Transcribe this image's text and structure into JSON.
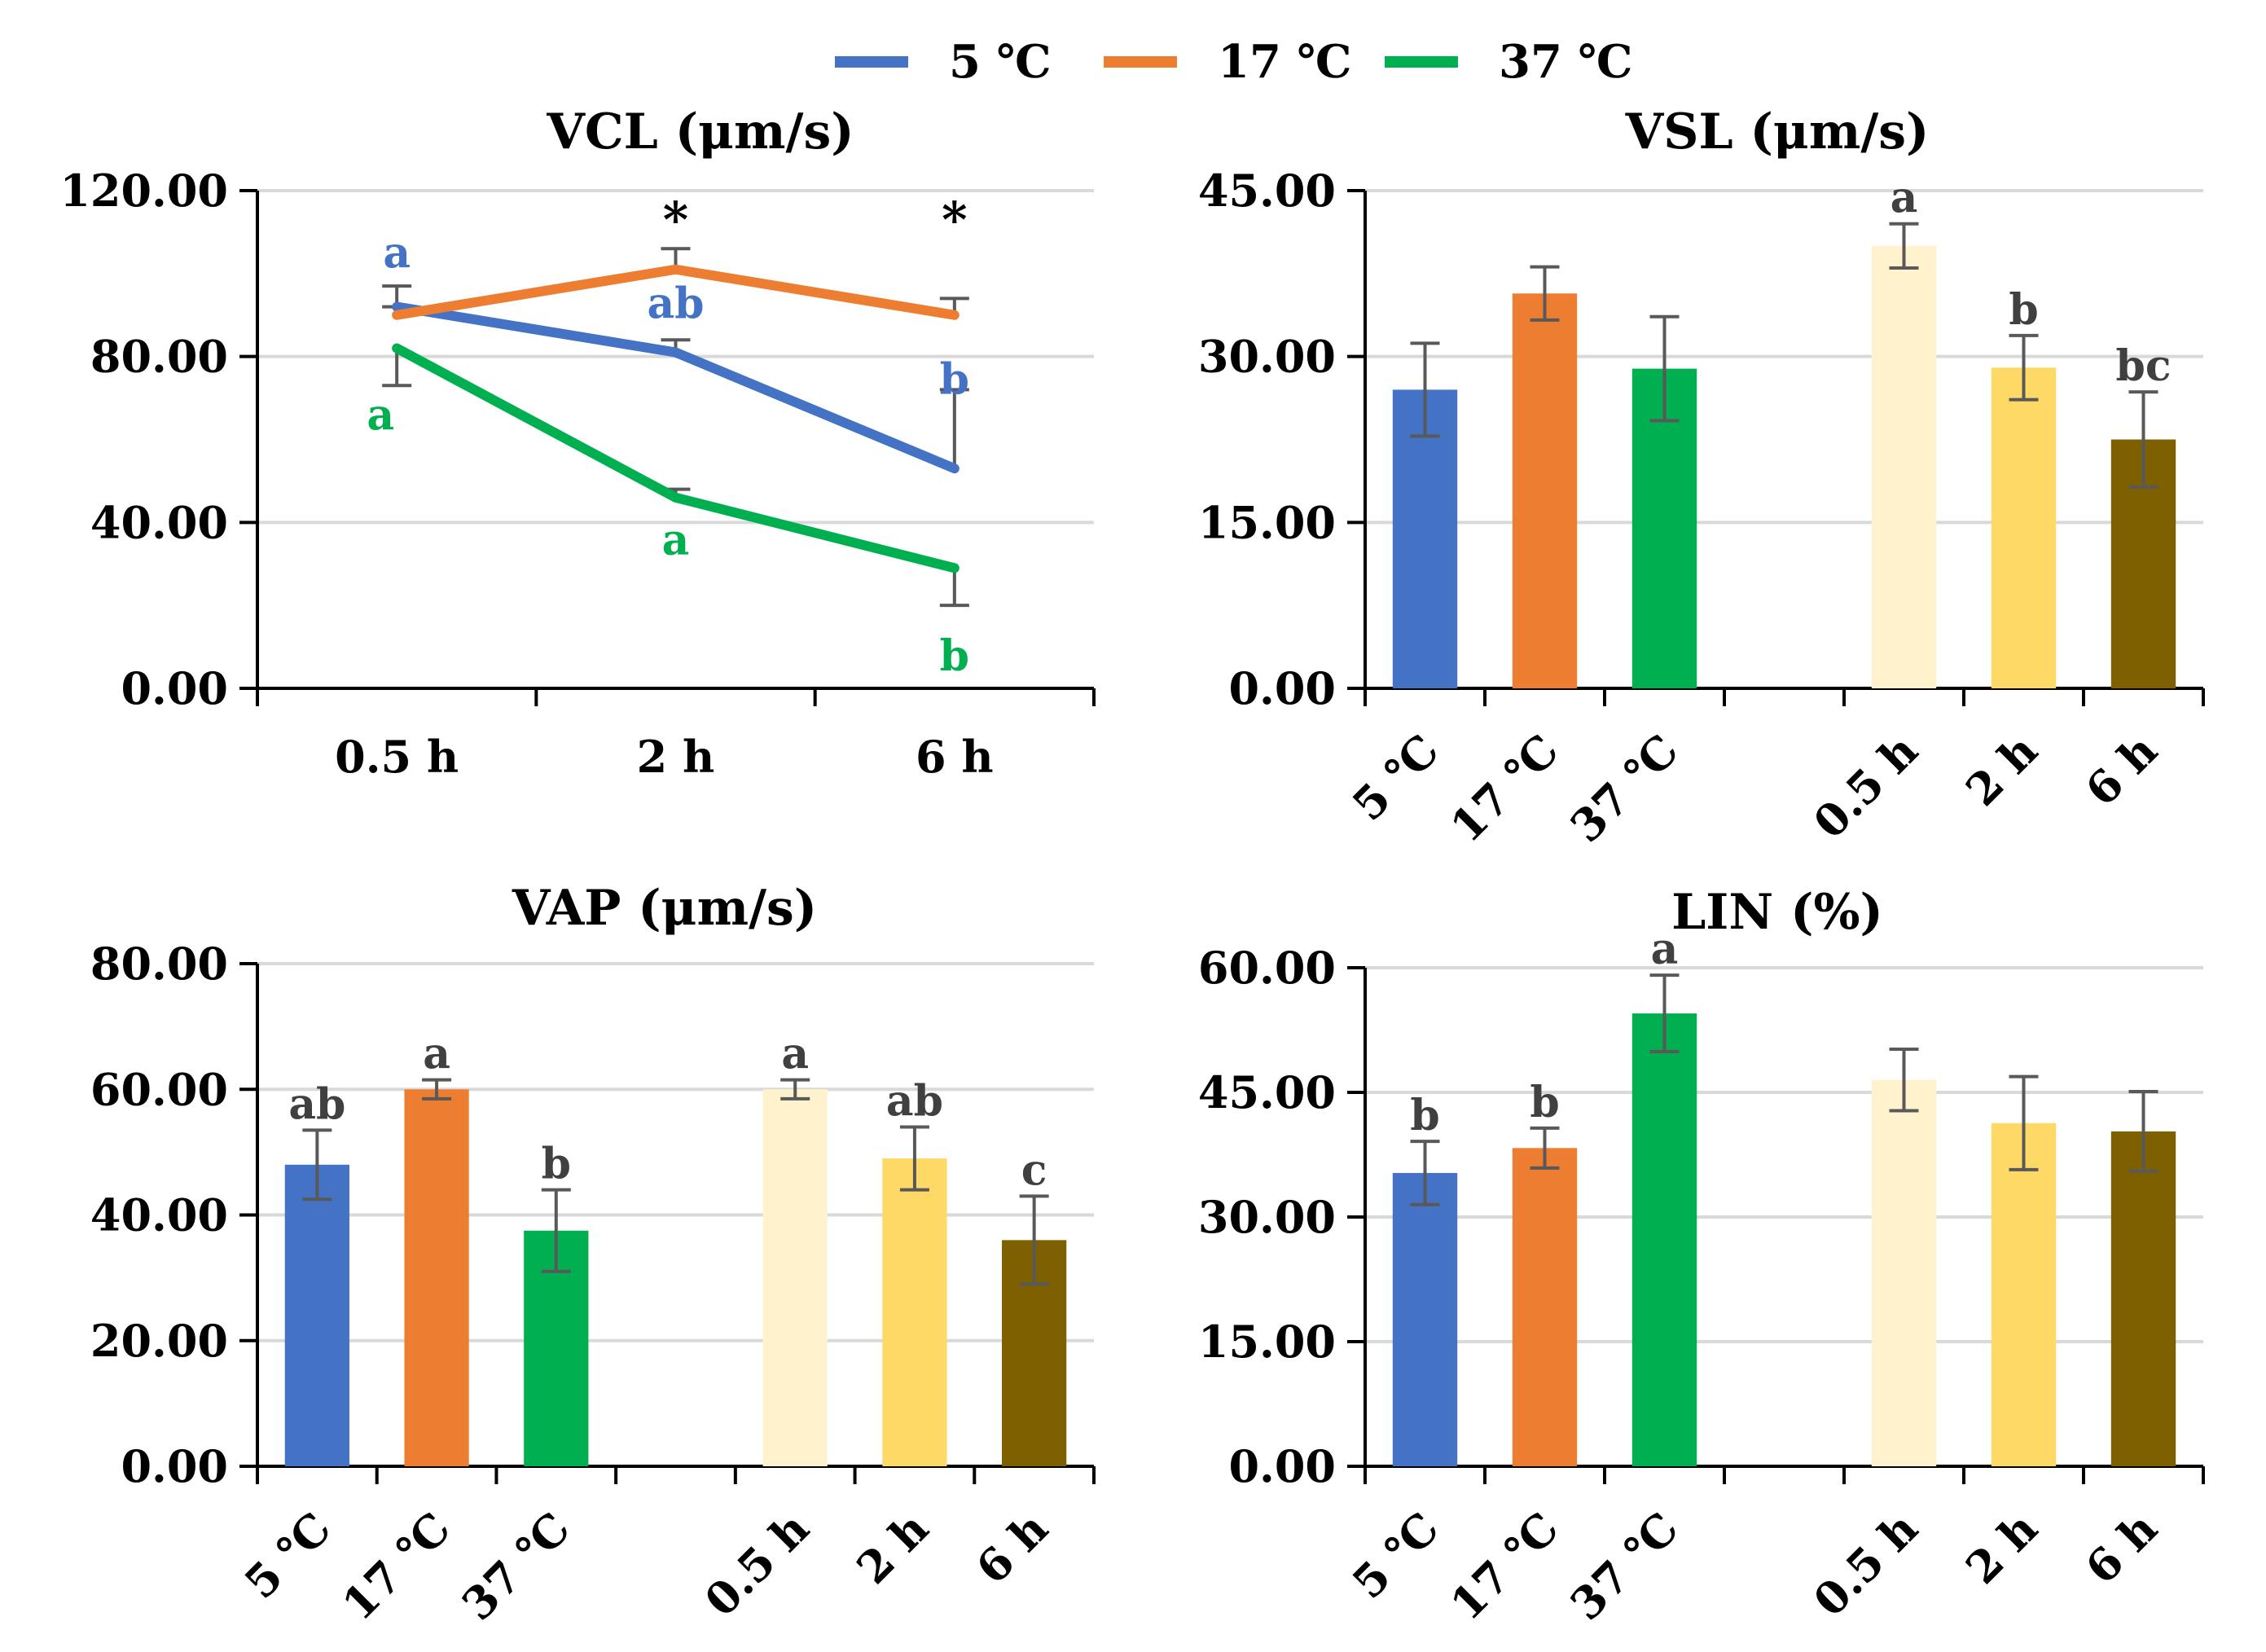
{
  "legend": [
    {
      "label": "5 ℃",
      "color": "#4472C4"
    },
    {
      "label": "17 ℃",
      "color": "#ED7D31"
    },
    {
      "label": "37 ℃",
      "color": "#00B050"
    }
  ],
  "chart_data": [
    {
      "id": "vcl",
      "type": "line",
      "title": "VCL (μm/s)",
      "ylim": [
        0,
        120
      ],
      "yticks": [
        "0.00",
        "40.00",
        "80.00",
        "120.00"
      ],
      "ytick_values": [
        0,
        40,
        80,
        120
      ],
      "categories": [
        "0.5 h",
        "2 h",
        "6 h"
      ],
      "grid": true,
      "series": [
        {
          "name": "5 ℃",
          "color": "#4472C4",
          "values": [
            92,
            81,
            53
          ],
          "errors": [
            5,
            3,
            19
          ],
          "letters": [
            "a",
            "ab",
            "b"
          ],
          "letter_color": "#4472C4"
        },
        {
          "name": "17 ℃",
          "color": "#ED7D31",
          "values": [
            90,
            101,
            90
          ],
          "errors": [
            2,
            5,
            4
          ],
          "letters": [
            "",
            "",
            ""
          ],
          "letter_color": "#ED7D31"
        },
        {
          "name": "37 ℃",
          "color": "#00B050",
          "values": [
            82,
            46,
            29
          ],
          "errors": [
            9,
            2,
            9
          ],
          "letters": [
            "a",
            "a",
            "b"
          ],
          "letter_color": "#00B050"
        }
      ],
      "significance": [
        "",
        "*",
        "*"
      ]
    },
    {
      "id": "vsl",
      "type": "bar",
      "title": "VSL (μm/s)",
      "ylim": [
        0,
        45
      ],
      "yticks": [
        "0.00",
        "15.00",
        "30.00",
        "45.00"
      ],
      "ytick_values": [
        0,
        15,
        30,
        45
      ],
      "categories": [
        "5 ℃",
        "17 ℃",
        "37 ℃",
        "",
        "0.5 h",
        "2 h",
        "6 h"
      ],
      "values": [
        27.0,
        35.7,
        28.9,
        null,
        40.0,
        29.0,
        22.5
      ],
      "errors": [
        4.2,
        2.4,
        4.7,
        null,
        2.0,
        2.9,
        4.3
      ],
      "colors": [
        "#4472C4",
        "#ED7D31",
        "#00B050",
        null,
        "#FFF2CC",
        "#FFD966",
        "#7F6000"
      ],
      "letters": [
        "",
        "",
        "",
        "",
        "a",
        "b",
        "bc"
      ],
      "grid": true
    },
    {
      "id": "vap",
      "type": "bar",
      "title": "VAP (μm/s)",
      "ylim": [
        0,
        80
      ],
      "yticks": [
        "0.00",
        "20.00",
        "40.00",
        "60.00",
        "80.00"
      ],
      "ytick_values": [
        0,
        20,
        40,
        60,
        80
      ],
      "categories": [
        "5 ℃",
        "17 ℃",
        "37 ℃",
        "",
        "0.5 h",
        "2 h",
        "6 h"
      ],
      "values": [
        48,
        60,
        37.5,
        null,
        60,
        49,
        36
      ],
      "errors": [
        5.5,
        1.5,
        6.5,
        null,
        1.5,
        5,
        7
      ],
      "colors": [
        "#4472C4",
        "#ED7D31",
        "#00B050",
        null,
        "#FFF2CC",
        "#FFD966",
        "#7F6000"
      ],
      "letters": [
        "ab",
        "a",
        "b",
        "",
        "a",
        "ab",
        "c"
      ],
      "grid": true
    },
    {
      "id": "lin",
      "type": "bar",
      "title": "LIN (%)",
      "ylim": [
        0,
        60
      ],
      "yticks": [
        "0.00",
        "15.00",
        "30.00",
        "45.00",
        "60.00"
      ],
      "ytick_values": [
        0,
        15,
        30,
        45,
        60
      ],
      "categories": [
        "5 ℃",
        "17 ℃",
        "37 ℃",
        "",
        "0.5 h",
        "2 h",
        "6 h"
      ],
      "values": [
        35.3,
        38.3,
        54.5,
        null,
        46.5,
        41.3,
        40.3
      ],
      "errors": [
        3.8,
        2.4,
        4.6,
        null,
        3.7,
        5.6,
        4.8
      ],
      "colors": [
        "#4472C4",
        "#ED7D31",
        "#00B050",
        null,
        "#FFF2CC",
        "#FFD966",
        "#7F6000"
      ],
      "letters": [
        "b",
        "b",
        "a",
        "",
        "",
        "",
        ""
      ],
      "grid": true
    }
  ]
}
